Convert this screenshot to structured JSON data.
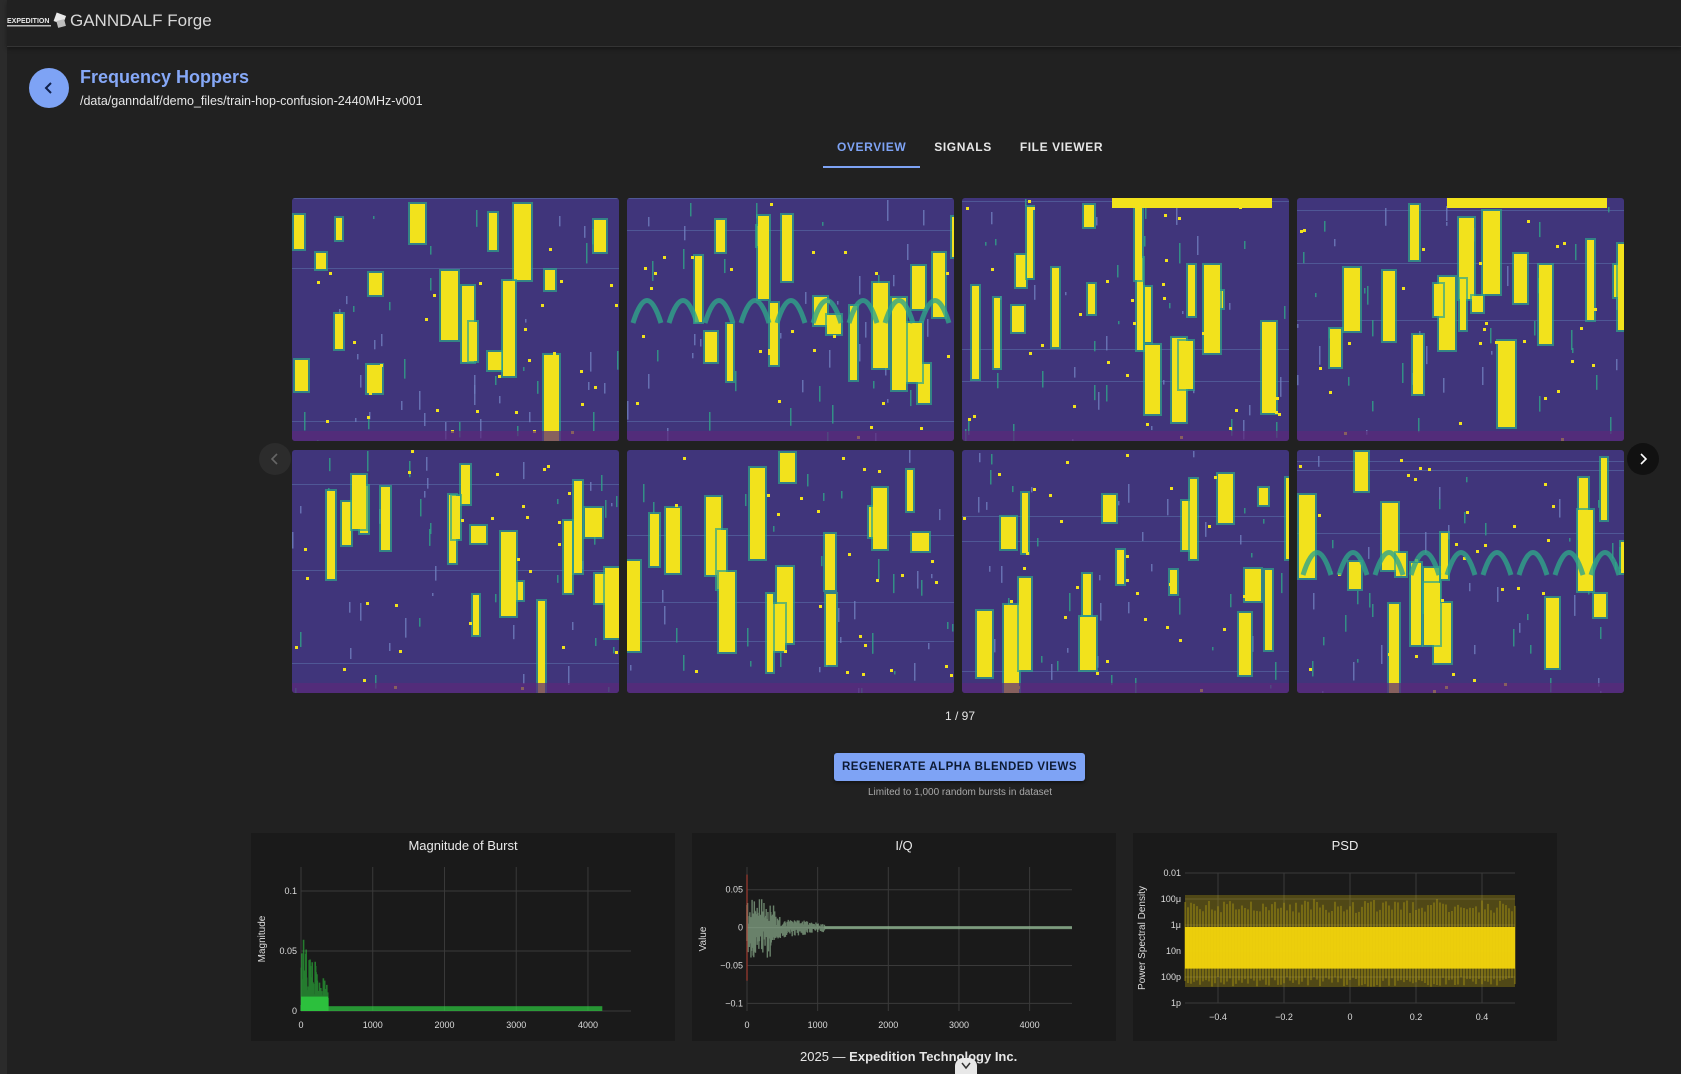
{
  "app": {
    "title": "GANNDALF Forge",
    "logo_text": "EXPEDITION"
  },
  "header": {
    "title": "Frequency Hoppers",
    "path": "/data/ganndalf/demo_files/train-hop-confusion-2440MHz-v001"
  },
  "tabs": [
    {
      "label": "OVERVIEW",
      "active": true
    },
    {
      "label": "SIGNALS",
      "active": false
    },
    {
      "label": "FILE VIEWER",
      "active": false
    }
  ],
  "gallery": {
    "page_label": "1 / 97",
    "current_page": 1,
    "total_pages": 97,
    "tile_count": 8,
    "colors": {
      "background": "#44206e",
      "noise": "#3b4f8c",
      "mid": "#2fa58a",
      "hot": "#f2e21c"
    }
  },
  "actions": {
    "regenerate_label": "REGENERATE ALPHA BLENDED VIEWS",
    "regenerate_note": "Limited to 1,000 random bursts in dataset"
  },
  "chart_data": [
    {
      "type": "line",
      "title": "Magnitude of Burst",
      "xlabel": "",
      "ylabel": "Magnitude",
      "xlim": [
        0,
        4600
      ],
      "ylim": [
        0,
        0.12
      ],
      "xticks": [
        0,
        1000,
        2000,
        3000,
        4000
      ],
      "xtick_labels": [
        "0",
        "1000",
        "2000",
        "3000",
        "4000"
      ],
      "yticks": [
        0,
        0.05,
        0.1
      ],
      "ytick_labels": [
        "0",
        "0.05",
        "0.1"
      ],
      "color": "#2ecc40",
      "grid": true
    },
    {
      "type": "line",
      "title": "I/Q",
      "xlabel": "",
      "ylabel": "Value",
      "xlim": [
        0,
        4600
      ],
      "ylim": [
        -0.11,
        0.08
      ],
      "xticks": [
        0,
        1000,
        2000,
        3000,
        4000
      ],
      "xtick_labels": [
        "0",
        "1000",
        "2000",
        "3000",
        "4000"
      ],
      "yticks": [
        -0.1,
        -0.05,
        0,
        0.05
      ],
      "ytick_labels": [
        "−0.1",
        "−0.05",
        "0",
        "0.05"
      ],
      "color": "#9ec7a0",
      "grid": true
    },
    {
      "type": "area",
      "title": "PSD",
      "xlabel": "",
      "ylabel": "Power Spectral Density",
      "xlim": [
        -0.5,
        0.5
      ],
      "xticks": [
        -0.4,
        -0.2,
        0,
        0.2,
        0.4
      ],
      "xtick_labels": [
        "−0.4",
        "−0.2",
        "0",
        "0.2",
        "0.4"
      ],
      "ytick_labels": [
        "0.01",
        "100μ",
        "1μ",
        "10n",
        "100p",
        "1p"
      ],
      "yscale": "log",
      "color": "#f2d40c",
      "grid": true
    }
  ],
  "footer": {
    "year": "2025",
    "separator": "—",
    "company": "Expedition Technology Inc."
  }
}
